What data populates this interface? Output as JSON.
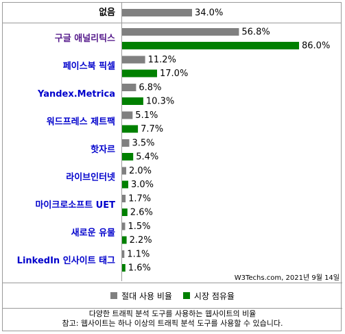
{
  "chart_data": {
    "type": "bar",
    "orientation": "horizontal",
    "categories": [
      "없음",
      "구글 애널리틱스",
      "페이스북 픽셀",
      "Yandex.Metrica",
      "워드프레스 제트팩",
      "핫자르",
      "라이브인터넷",
      "마이크로소프트 UET",
      "새로운 유물",
      "LinkedIn 인사이트 태그"
    ],
    "category_colors": [
      "#000000",
      "#551a8b",
      "#0000cc",
      "#0000cc",
      "#0000cc",
      "#0000cc",
      "#0000cc",
      "#0000cc",
      "#0000cc",
      "#0000cc"
    ],
    "series": [
      {
        "name": "절대 사용 비율",
        "color": "#808080",
        "values": [
          34.0,
          56.8,
          11.2,
          6.8,
          5.1,
          3.5,
          2.0,
          1.7,
          1.5,
          1.1
        ],
        "labels": [
          "34.0%",
          "56.8%",
          "11.2%",
          "6.8%",
          "5.1%",
          "3.5%",
          "2.0%",
          "1.7%",
          "1.5%",
          "1.1%"
        ]
      },
      {
        "name": "시장 점유율",
        "color": "#008000",
        "values": [
          null,
          86.0,
          17.0,
          10.3,
          7.7,
          5.4,
          3.0,
          2.6,
          2.2,
          1.6
        ],
        "labels": [
          "",
          "86.0%",
          "17.0%",
          "10.3%",
          "7.7%",
          "5.4%",
          "3.0%",
          "2.6%",
          "2.2%",
          "1.6%"
        ]
      }
    ],
    "xlim": [
      0,
      100
    ],
    "grid": false,
    "legend_position": "bottom"
  },
  "source_text": "W3Techs.com, 2021년 9월 14일",
  "footer": {
    "line1": "다양한 트래픽 분석 도구를 사용하는 웹사이트의 비율",
    "line2": "참고: 웹사이트는 하나 이상의 트래픽 분석 도구를 사용할 수 있습니다."
  }
}
